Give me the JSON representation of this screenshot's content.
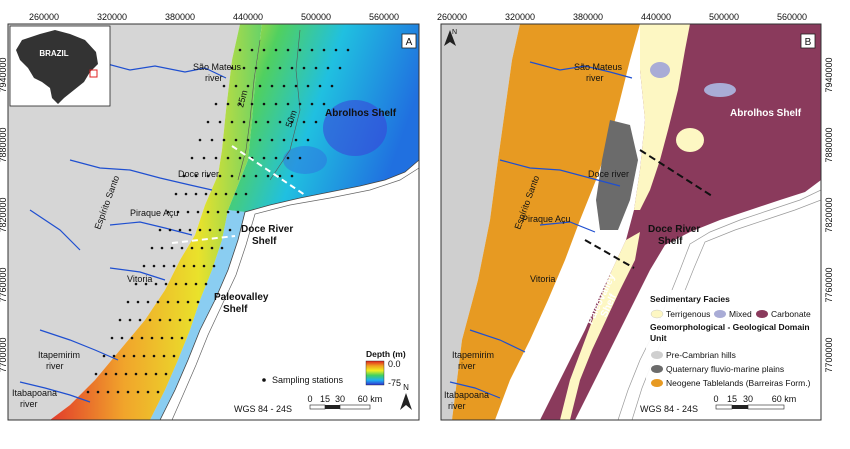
{
  "x_ticks": [
    "260000",
    "320000",
    "380000",
    "440000",
    "500000",
    "560000"
  ],
  "y_ticks": [
    "7940000",
    "7880000",
    "7820000",
    "7760000",
    "7700000"
  ],
  "panel_a": {
    "letter": "A",
    "inset_label": "BRAZIL",
    "contour_labels": [
      "25m",
      "50m"
    ],
    "labels": {
      "sao_mateus": [
        "São Mateus",
        "river"
      ],
      "abrolhos": "Abrolhos Shelf",
      "doce_river": "Doce river",
      "espirito_santo": "Espírito Santo",
      "piraque": "Piraque Açu",
      "doce_shelf": [
        "Doce River",
        "Shelf"
      ],
      "vitoria": "Vitoria",
      "paleovalley": [
        "Paleovalley",
        "Shelf"
      ],
      "itapemirim": [
        "Itapemirim",
        "river"
      ],
      "itabapoana": [
        "Itabapoana",
        "river"
      ]
    },
    "depth_legend": {
      "title": "Depth (m)",
      "max": "0.0",
      "min": "-75"
    },
    "sampling_label": "Sampling stations",
    "datum": "WGS 84 - 24S",
    "scalebar": [
      "0",
      "15",
      "30",
      "60 km"
    ],
    "north": "N",
    "colors": {
      "land": "#d6d6d6",
      "ocean": "#ffffff",
      "river": "#1f4fd0"
    }
  },
  "panel_b": {
    "letter": "B",
    "north": "N",
    "labels": {
      "sao_mateus": [
        "São Mateus",
        "river"
      ],
      "abrolhos": "Abrolhos Shelf",
      "doce_river": "Doce river",
      "espirito_santo": "Espírito Santo",
      "piraque": "Piraque Açu",
      "doce_shelf": [
        "Doce River",
        "Shelf"
      ],
      "vitoria": "Vitoria",
      "paleovalley": [
        "Paleovalley",
        "Shelf"
      ],
      "itapemirim": [
        "Itapemirim",
        "river"
      ],
      "itabapoana": [
        "Itabapoana",
        "river"
      ]
    },
    "legend": {
      "facies_title": "Sedimentary Facies",
      "facies": [
        "Terrigenous",
        "Mixed",
        "Carbonate"
      ],
      "geo_title": "Geomorphological - Geological Domain",
      "geo_title2": "Unit",
      "units": [
        "Pre-Cambrian hills",
        "Quaternary fluvio-marine plains",
        "Neogene Tablelands (Barreiras Form.)"
      ]
    },
    "datum": "WGS 84 - 24S",
    "scalebar": [
      "0",
      "15",
      "30",
      "60 km"
    ],
    "colors": {
      "terrigenous": "#fdf7c3",
      "mixed": "#a9acd6",
      "carbonate": "#8a3a5c",
      "precambrian": "#cfcfcf",
      "quaternary": "#6b6b6b",
      "neogene": "#e79a22"
    }
  }
}
